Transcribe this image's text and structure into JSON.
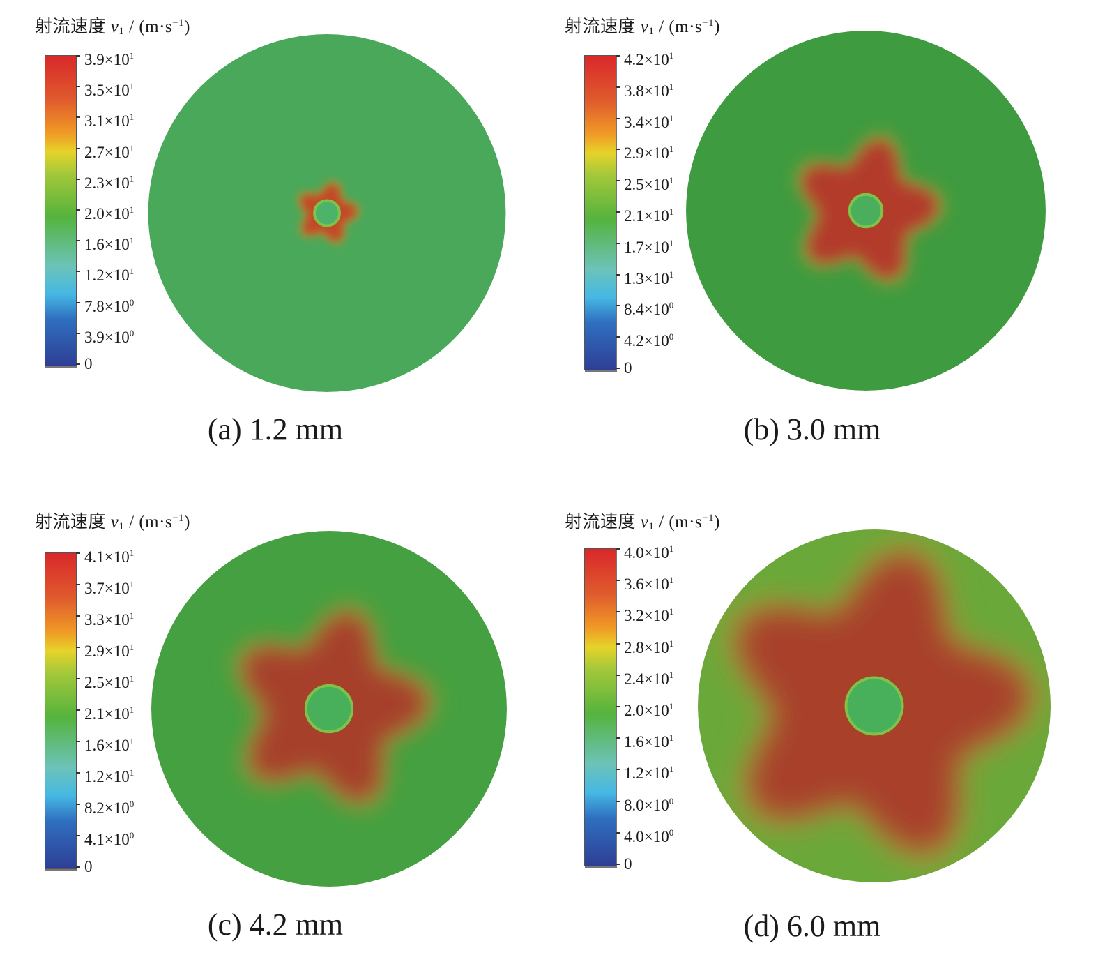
{
  "colorbar_title": {
    "prefix": "射流速度",
    "var": "v",
    "sub": "1",
    "unit_open": " / (m·s",
    "unit_exp": "−1",
    "unit_close": ")"
  },
  "colormap": [
    "#2e3f95",
    "#2f6fc0",
    "#45b8e3",
    "#6cc3b9",
    "#55b33d",
    "#a4c83a",
    "#e6d32a",
    "#f09a25",
    "#df5a2d",
    "#d9282a"
  ],
  "panels": [
    {
      "caption": "(a) 1.2 mm",
      "ticks": [
        {
          "m": "3.9",
          "e": "1"
        },
        {
          "m": "3.5",
          "e": "1"
        },
        {
          "m": "3.1",
          "e": "1"
        },
        {
          "m": "2.7",
          "e": "1"
        },
        {
          "m": "2.3",
          "e": "1"
        },
        {
          "m": "2.0",
          "e": "1"
        },
        {
          "m": "1.6",
          "e": "1"
        },
        {
          "m": "1.2",
          "e": "1"
        },
        {
          "m": "7.8",
          "e": "0"
        },
        {
          "m": "3.9",
          "e": "0"
        },
        {
          "m": "0",
          "e": ""
        }
      ],
      "field": {
        "background": "#4aa85a",
        "core_radius_fraction": 0.17,
        "jet_radius_fraction": 0.07,
        "core_color": "#c24a28",
        "jet_color": "#4db36a",
        "lobes": 5
      }
    },
    {
      "caption": "(b) 3.0 mm",
      "ticks": [
        {
          "m": "4.2",
          "e": "1"
        },
        {
          "m": "3.8",
          "e": "1"
        },
        {
          "m": "3.4",
          "e": "1"
        },
        {
          "m": "2.9",
          "e": "1"
        },
        {
          "m": "2.5",
          "e": "1"
        },
        {
          "m": "2.1",
          "e": "1"
        },
        {
          "m": "1.7",
          "e": "1"
        },
        {
          "m": "1.3",
          "e": "1"
        },
        {
          "m": "8.4",
          "e": "0"
        },
        {
          "m": "4.2",
          "e": "0"
        },
        {
          "m": "0",
          "e": ""
        }
      ],
      "field": {
        "background": "#3f9b3f",
        "core_radius_fraction": 0.4,
        "jet_radius_fraction": 0.09,
        "core_color": "#b23a2a",
        "jet_color": "#4aae5c",
        "lobes": 5
      }
    },
    {
      "caption": "(c) 4.2 mm",
      "ticks": [
        {
          "m": "4.1",
          "e": "1"
        },
        {
          "m": "3.7",
          "e": "1"
        },
        {
          "m": "3.3",
          "e": "1"
        },
        {
          "m": "2.9",
          "e": "1"
        },
        {
          "m": "2.5",
          "e": "1"
        },
        {
          "m": "2.1",
          "e": "1"
        },
        {
          "m": "1.6",
          "e": "1"
        },
        {
          "m": "1.2",
          "e": "1"
        },
        {
          "m": "8.2",
          "e": "0"
        },
        {
          "m": "4.1",
          "e": "0"
        },
        {
          "m": "0",
          "e": ""
        }
      ],
      "field": {
        "background": "#44a040",
        "core_radius_fraction": 0.55,
        "jet_radius_fraction": 0.13,
        "core_color": "#a63f2a",
        "jet_color": "#48b05a",
        "lobes": 5
      }
    },
    {
      "caption": "(d) 6.0 mm",
      "ticks": [
        {
          "m": "4.0",
          "e": "1"
        },
        {
          "m": "3.6",
          "e": "1"
        },
        {
          "m": "3.2",
          "e": "1"
        },
        {
          "m": "2.8",
          "e": "1"
        },
        {
          "m": "2.4",
          "e": "1"
        },
        {
          "m": "2.0",
          "e": "1"
        },
        {
          "m": "1.6",
          "e": "1"
        },
        {
          "m": "1.2",
          "e": "1"
        },
        {
          "m": "8.0",
          "e": "0"
        },
        {
          "m": "4.0",
          "e": "0"
        },
        {
          "m": "0",
          "e": ""
        }
      ],
      "field": {
        "background": "#6aa83a",
        "core_radius_fraction": 0.88,
        "jet_radius_fraction": 0.16,
        "core_color": "#a8402a",
        "jet_color": "#48b05a",
        "lobes": 5
      }
    }
  ]
}
